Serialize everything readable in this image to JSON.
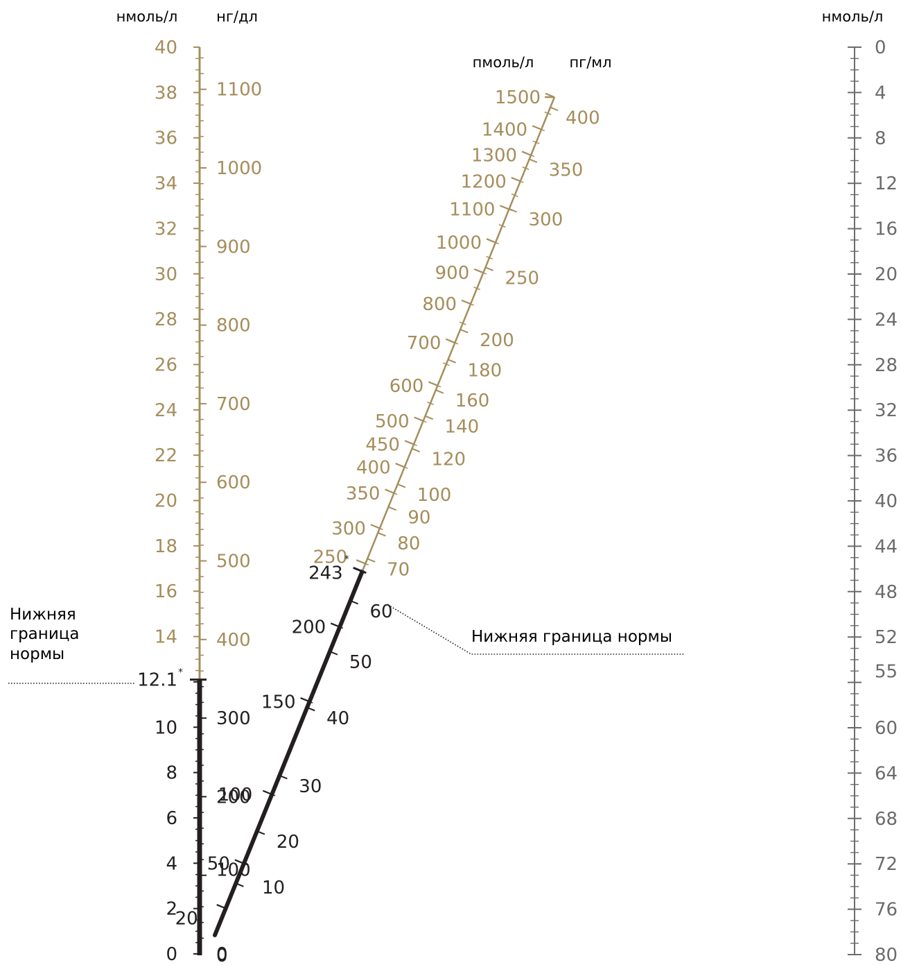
{
  "colors": {
    "gold": "#a58d5b",
    "dark": "#231f20",
    "gray": "#6b6b6b"
  },
  "units": {
    "left_nmol": "нмоль/л",
    "left_ngdl": "нг/дл",
    "diag_pmol": "пмоль/л",
    "diag_pgml": "пг/мл",
    "right_nmol": "нмоль/л"
  },
  "notes": {
    "left_line1": "Нижняя",
    "left_line2": "граница",
    "left_line3": "нормы",
    "right": "Нижняя граница нормы",
    "asterisk": "*"
  },
  "scales": {
    "left_nmol": {
      "labels": [
        "0",
        "2",
        "4",
        "6",
        "8",
        "10",
        "12.1",
        "14",
        "16",
        "18",
        "20",
        "22",
        "24",
        "26",
        "28",
        "30",
        "32",
        "34",
        "36",
        "38",
        "40"
      ],
      "values": [
        0,
        2,
        4,
        6,
        8,
        10,
        12.1,
        14,
        16,
        18,
        20,
        22,
        24,
        26,
        28,
        30,
        32,
        34,
        36,
        38,
        40
      ],
      "range": [
        0,
        40
      ],
      "threshold": 12.1
    },
    "left_ngdl": {
      "labels": [
        "0",
        "100",
        "200",
        "300",
        "400",
        "500",
        "600",
        "700",
        "800",
        "900",
        "1000",
        "1100"
      ],
      "values": [
        0,
        100,
        200,
        300,
        400,
        500,
        600,
        700,
        800,
        900,
        1000,
        1100
      ]
    },
    "diag_pmol": {
      "labels": [
        "20",
        "50",
        "100",
        "150",
        "200",
        "243",
        "250",
        "300",
        "350",
        "400",
        "450",
        "500",
        "600",
        "700",
        "800",
        "900",
        "1000",
        "1100",
        "1200",
        "1300",
        "1400",
        "1500"
      ],
      "values": [
        20,
        50,
        100,
        150,
        200,
        243,
        250,
        300,
        350,
        400,
        450,
        500,
        600,
        700,
        800,
        900,
        1000,
        1100,
        1200,
        1300,
        1400,
        1500
      ],
      "threshold": 243
    },
    "diag_pgml": {
      "labels": [
        "0",
        "10",
        "20",
        "30",
        "40",
        "50",
        "60",
        "70",
        "80",
        "90",
        "100",
        "120",
        "140",
        "160",
        "180",
        "200",
        "250",
        "300",
        "350",
        "400"
      ],
      "values": [
        0,
        10,
        20,
        30,
        40,
        50,
        60,
        70,
        80,
        90,
        100,
        120,
        140,
        160,
        180,
        200,
        250,
        300,
        350,
        400
      ]
    },
    "right_nmol": {
      "labels": [
        "0",
        "4",
        "8",
        "12",
        "16",
        "20",
        "24",
        "28",
        "32",
        "36",
        "40",
        "44",
        "48",
        "52",
        "55",
        "60",
        "64",
        "68",
        "72",
        "76",
        "80"
      ],
      "values": [
        0,
        4,
        8,
        12,
        16,
        20,
        24,
        28,
        32,
        36,
        40,
        44,
        48,
        52,
        55,
        60,
        64,
        68,
        72,
        76,
        80
      ],
      "range": [
        0,
        80
      ]
    }
  }
}
